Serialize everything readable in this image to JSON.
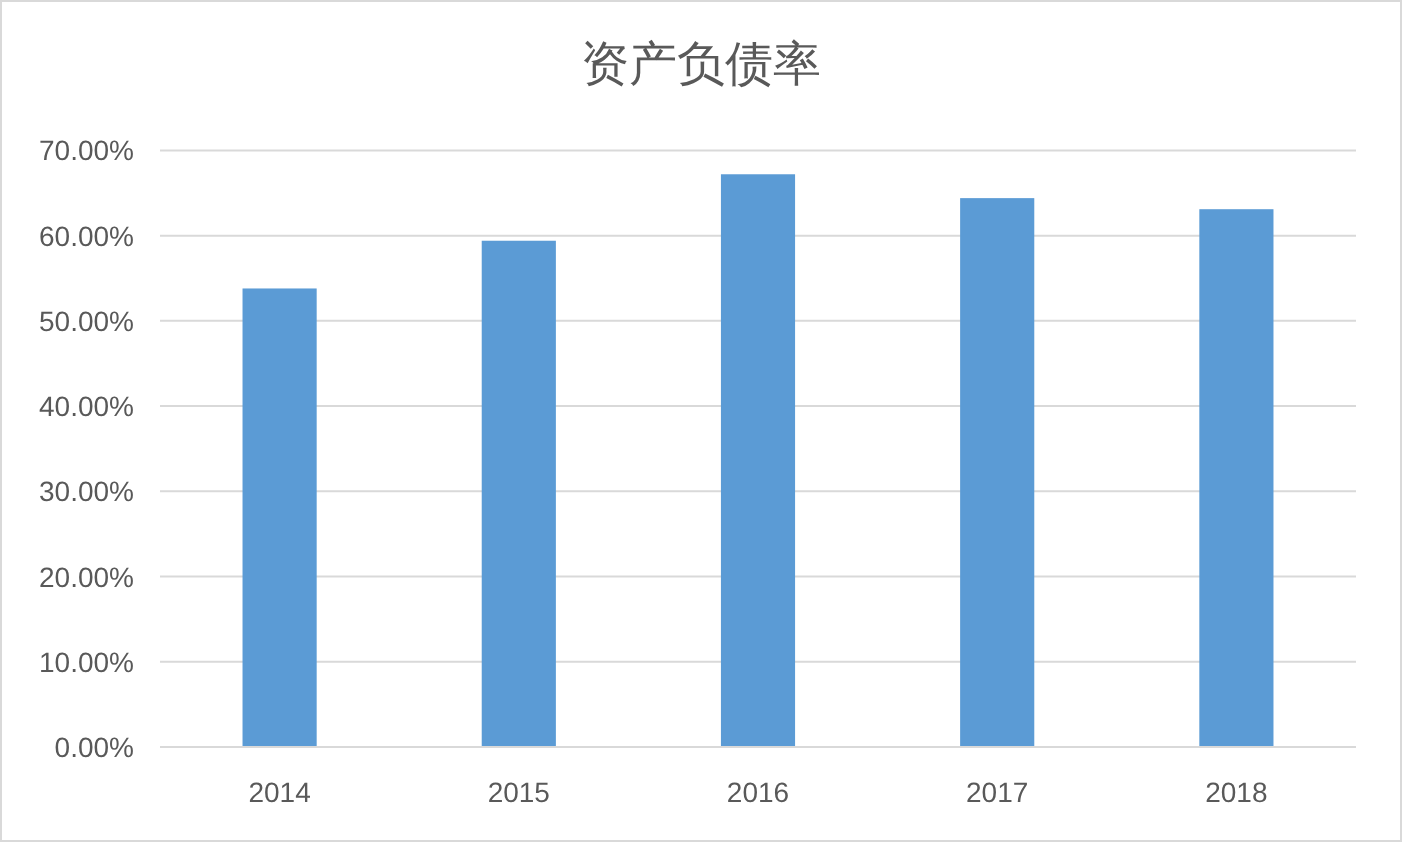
{
  "chart_data": {
    "type": "bar",
    "title": "资产负债率",
    "categories": [
      "2014",
      "2015",
      "2016",
      "2017",
      "2018"
    ],
    "values": [
      53.8,
      59.4,
      67.2,
      64.4,
      63.1
    ],
    "color": "#5b9bd5",
    "ylim": [
      0,
      70
    ],
    "yticks": [
      {
        "value": 0,
        "label": "0.00%"
      },
      {
        "value": 10,
        "label": "10.00%"
      },
      {
        "value": 20,
        "label": "20.00%"
      },
      {
        "value": 30,
        "label": "30.00%"
      },
      {
        "value": 40,
        "label": "40.00%"
      },
      {
        "value": 50,
        "label": "50.00%"
      },
      {
        "value": 60,
        "label": "60.00%"
      },
      {
        "value": 70,
        "label": "70.00%"
      }
    ],
    "grid": "y"
  }
}
